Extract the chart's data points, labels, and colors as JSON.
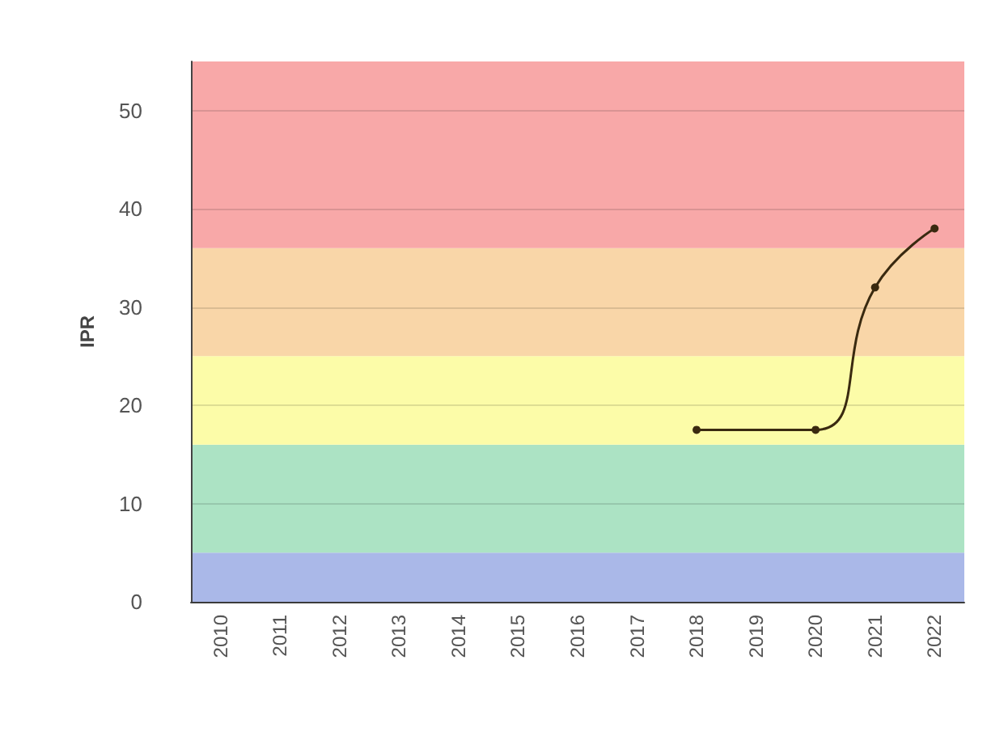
{
  "chart_data": {
    "type": "line",
    "ylabel": "IPR",
    "categories": [
      "2010",
      "2011",
      "2012",
      "2013",
      "2014",
      "2015",
      "2016",
      "2017",
      "2018",
      "2019",
      "2020",
      "2021",
      "2022"
    ],
    "series": [
      {
        "color": "#3a2a10",
        "values": [
          null,
          null,
          null,
          null,
          null,
          null,
          null,
          null,
          17.5,
          null,
          17.5,
          32,
          38
        ]
      }
    ],
    "ylim": [
      0,
      55
    ],
    "yticks": [
      0,
      10,
      20,
      30,
      40,
      50
    ],
    "grid": "y",
    "marker": "circle",
    "line_style": "solid",
    "bands": [
      {
        "axis": "y",
        "from": 0,
        "to": 5,
        "color": "#aab8e8"
      },
      {
        "axis": "y",
        "from": 5,
        "to": 16,
        "color": "#ace3c4"
      },
      {
        "axis": "y",
        "from": 16,
        "to": 25,
        "color": "#fcfca8"
      },
      {
        "axis": "y",
        "from": 25,
        "to": 36,
        "color": "#f9d6a8"
      },
      {
        "axis": "y",
        "from": 36,
        "to": 55,
        "color": "#f8a8a8"
      }
    ]
  }
}
